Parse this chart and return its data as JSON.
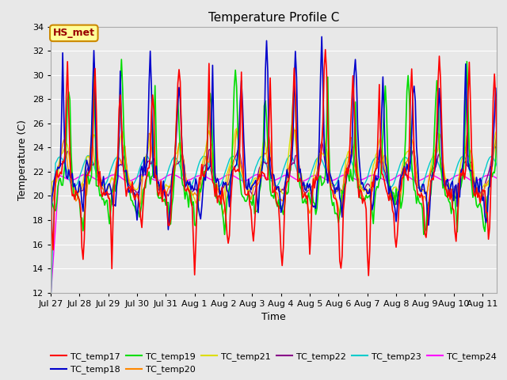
{
  "title": "Temperature Profile C",
  "xlabel": "Time",
  "ylabel": "Temperature (C)",
  "ylim": [
    12,
    34
  ],
  "yticks": [
    12,
    14,
    16,
    18,
    20,
    22,
    24,
    26,
    28,
    30,
    32,
    34
  ],
  "legend_label": "HS_met",
  "series_names": [
    "TC_temp17",
    "TC_temp18",
    "TC_temp19",
    "TC_temp20",
    "TC_temp21",
    "TC_temp22",
    "TC_temp23",
    "TC_temp24"
  ],
  "series_colors": [
    "#ff0000",
    "#0000cc",
    "#00dd00",
    "#ff8800",
    "#dddd00",
    "#880088",
    "#00cccc",
    "#ff00ff"
  ],
  "background_color": "#e8e8e8",
  "grid_color": "#ffffff",
  "annotation_bg": "#ffff99",
  "annotation_border": "#cc8800",
  "figsize": [
    6.4,
    4.8
  ],
  "dpi": 100
}
